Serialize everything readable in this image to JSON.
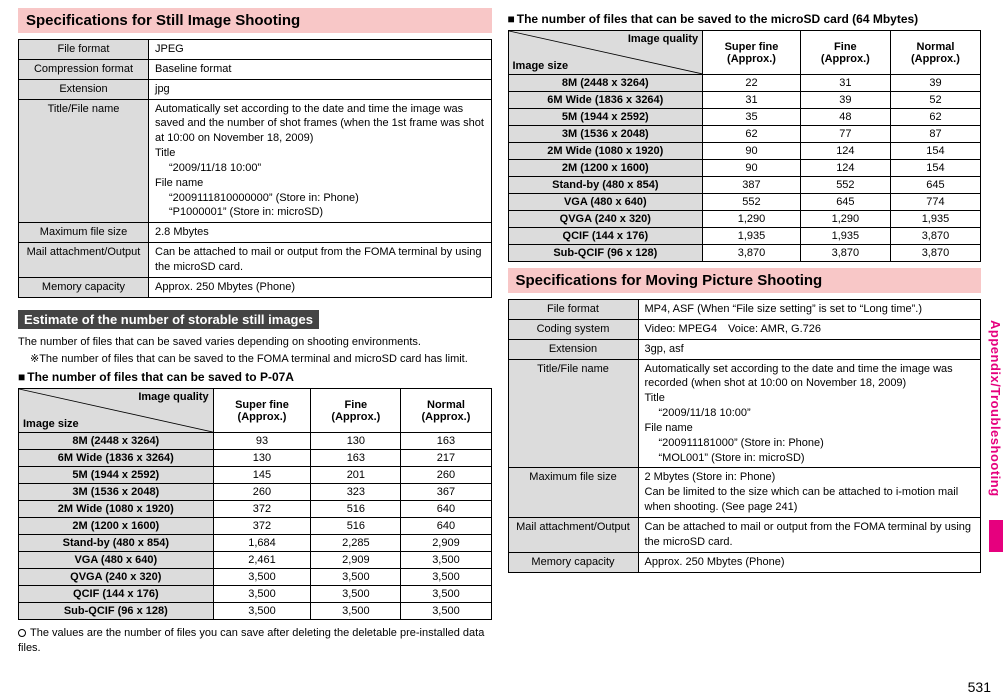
{
  "side_tab": "Appendix/Troubleshooting",
  "page_number": "531",
  "left": {
    "heading_still": "Specifications for Still Image Shooting",
    "spec_table": [
      {
        "label": "File format",
        "lines": [
          "JPEG"
        ]
      },
      {
        "label": "Compression format",
        "lines": [
          "Baseline format"
        ]
      },
      {
        "label": "Extension",
        "lines": [
          "jpg"
        ]
      },
      {
        "label": "Title/File name",
        "lines": [
          "Automatically set according to the date and time the image was saved and the number of shot frames (when the 1st frame was shot at 10:00 on November 18, 2009)",
          "Title",
          "  “2009/11/18 10:00”",
          "File name",
          "  “2009111810000000” (Store in: Phone)",
          "  “P1000001” (Store in: microSD)"
        ]
      },
      {
        "label": "Maximum file size",
        "lines": [
          "2.8 Mbytes"
        ]
      },
      {
        "label": "Mail attachment/Output",
        "lines": [
          "Can be attached to mail or output from the FOMA terminal by using the microSD card."
        ]
      },
      {
        "label": "Memory capacity",
        "lines": [
          "Approx. 250 Mbytes (Phone)"
        ]
      }
    ],
    "estimate_header": "Estimate of the number of storable still images",
    "estimate_text": "The number of files that can be saved varies depending on shooting environments.",
    "estimate_note": "※The number of files that can be saved to the FOMA terminal and microSD card has limit.",
    "p07a_title": "The number of files that can be saved to P-07A",
    "cap_corner_top": "Image quality",
    "cap_corner_bot": "Image size",
    "cap_cols": [
      "Super fine (Approx.)",
      "Fine (Approx.)",
      "Normal (Approx.)"
    ],
    "cap_rows": [
      {
        "label": "8M (2448 x 3264)",
        "v": [
          "93",
          "130",
          "163"
        ]
      },
      {
        "label": "6M Wide (1836 x 3264)",
        "v": [
          "130",
          "163",
          "217"
        ]
      },
      {
        "label": "5M (1944 x 2592)",
        "v": [
          "145",
          "201",
          "260"
        ]
      },
      {
        "label": "3M (1536 x 2048)",
        "v": [
          "260",
          "323",
          "367"
        ]
      },
      {
        "label": "2M Wide (1080 x 1920)",
        "v": [
          "372",
          "516",
          "640"
        ]
      },
      {
        "label": "2M (1200 x 1600)",
        "v": [
          "372",
          "516",
          "640"
        ]
      },
      {
        "label": "Stand-by (480 x 854)",
        "v": [
          "1,684",
          "2,285",
          "2,909"
        ]
      },
      {
        "label": "VGA (480 x 640)",
        "v": [
          "2,461",
          "2,909",
          "3,500"
        ]
      },
      {
        "label": "QVGA (240 x 320)",
        "v": [
          "3,500",
          "3,500",
          "3,500"
        ]
      },
      {
        "label": "QCIF (144 x 176)",
        "v": [
          "3,500",
          "3,500",
          "3,500"
        ]
      },
      {
        "label": "Sub-QCIF (96 x 128)",
        "v": [
          "3,500",
          "3,500",
          "3,500"
        ]
      }
    ],
    "footnote": "The values are the number of files you can save after deleting the deletable pre-installed data files."
  },
  "right": {
    "sd_title": "The number of files that can be saved to the microSD card (64 Mbytes)",
    "cap_corner_top": "Image quality",
    "cap_corner_bot": "Image size",
    "cap_cols": [
      "Super fine (Approx.)",
      "Fine (Approx.)",
      "Normal (Approx.)"
    ],
    "cap_rows": [
      {
        "label": "8M (2448 x 3264)",
        "v": [
          "22",
          "31",
          "39"
        ]
      },
      {
        "label": "6M Wide (1836 x 3264)",
        "v": [
          "31",
          "39",
          "52"
        ]
      },
      {
        "label": "5M (1944 x 2592)",
        "v": [
          "35",
          "48",
          "62"
        ]
      },
      {
        "label": "3M (1536 x 2048)",
        "v": [
          "62",
          "77",
          "87"
        ]
      },
      {
        "label": "2M Wide (1080 x 1920)",
        "v": [
          "90",
          "124",
          "154"
        ]
      },
      {
        "label": "2M (1200 x 1600)",
        "v": [
          "90",
          "124",
          "154"
        ]
      },
      {
        "label": "Stand-by (480 x 854)",
        "v": [
          "387",
          "552",
          "645"
        ]
      },
      {
        "label": "VGA (480 x 640)",
        "v": [
          "552",
          "645",
          "774"
        ]
      },
      {
        "label": "QVGA (240 x 320)",
        "v": [
          "1,290",
          "1,290",
          "1,935"
        ]
      },
      {
        "label": "QCIF (144 x 176)",
        "v": [
          "1,935",
          "1,935",
          "3,870"
        ]
      },
      {
        "label": "Sub-QCIF (96 x 128)",
        "v": [
          "3,870",
          "3,870",
          "3,870"
        ]
      }
    ],
    "heading_movie": "Specifications for Moving Picture Shooting",
    "spec_table": [
      {
        "label": "File format",
        "lines": [
          "MP4, ASF (When “File size setting” is set to “Long time”.)"
        ]
      },
      {
        "label": "Coding system",
        "lines": [
          "Video: MPEG4 Voice: AMR, G.726"
        ]
      },
      {
        "label": "Extension",
        "lines": [
          "3gp, asf"
        ]
      },
      {
        "label": "Title/File name",
        "lines": [
          "Automatically set according to the date and time the image was recorded (when shot at 10:00 on November 18, 2009)",
          "Title",
          "  “2009/11/18 10:00”",
          "File name",
          "  “200911181000” (Store in: Phone)",
          "  “MOL001” (Store in: microSD)"
        ]
      },
      {
        "label": "Maximum file size",
        "lines": [
          "2 Mbytes (Store in: Phone)",
          "Can be limited to the size which can be attached to i-motion mail when shooting. (See page 241)"
        ]
      },
      {
        "label": "Mail attachment/Output",
        "lines": [
          "Can be attached to mail or output from the FOMA terminal by using the microSD card."
        ]
      },
      {
        "label": "Memory capacity",
        "lines": [
          "Approx. 250 Mbytes (Phone)"
        ]
      }
    ]
  }
}
